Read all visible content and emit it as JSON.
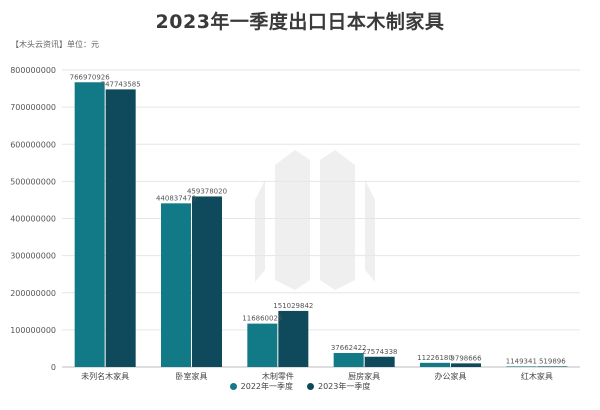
{
  "chart_data": {
    "type": "bar",
    "title": "2023年一季度出口日本木制家具",
    "unit_note": "【木头云资讯】单位：元",
    "categories": [
      "未列名木家具",
      "卧室家具",
      "木制零件",
      "厨房家具",
      "办公家具",
      "红木家具"
    ],
    "series": [
      {
        "name": "2022年一季度",
        "color": "#117a86",
        "values": [
          766970926,
          440837470,
          116860025,
          37662422,
          11226180,
          1149341
        ],
        "labels": [
          "766970926",
          "440837470",
          "116860025",
          "37662422",
          "11226180",
          "1149341"
        ]
      },
      {
        "name": "2023年一季度",
        "color": "#0e4a5c",
        "values": [
          747743585,
          459378020,
          151029842,
          27574338,
          9798666,
          519896
        ],
        "labels": [
          "747743585",
          "459378020",
          "151029842",
          "27574338",
          "9798666",
          "519896"
        ]
      }
    ],
    "ylim": [
      0,
      800000000
    ],
    "yticks": [
      "0",
      "100000000",
      "200000000",
      "300000000",
      "400000000",
      "500000000",
      "600000000",
      "700000000",
      "800000000"
    ],
    "grid": true,
    "legend_position": "bottom-center",
    "xlabel": "",
    "ylabel": ""
  }
}
